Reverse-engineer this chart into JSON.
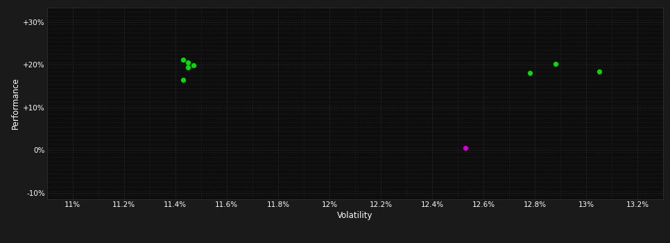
{
  "background_color": "#1a1a1a",
  "plot_bg_color": "#0d0d0d",
  "grid_color": "#2a2a2a",
  "text_color": "#ffffff",
  "xlabel": "Volatility",
  "ylabel": "Performance",
  "xlim": [
    0.109,
    0.133
  ],
  "ylim": [
    -0.115,
    0.335
  ],
  "xticks": [
    0.11,
    0.112,
    0.114,
    0.116,
    0.118,
    0.12,
    0.122,
    0.124,
    0.126,
    0.128,
    0.13,
    0.132
  ],
  "yticks": [
    -0.1,
    0.0,
    0.1,
    0.2,
    0.3
  ],
  "ytick_labels": [
    "-10%",
    "0%",
    "+10%",
    "+20%",
    "+30%"
  ],
  "xtick_labels": [
    "11%",
    "11.2%",
    "11.4%",
    "11.6%",
    "11.8%",
    "12%",
    "12.2%",
    "12.4%",
    "12.6%",
    "12.8%",
    "13%",
    "13.2%"
  ],
  "green_points": [
    [
      0.1143,
      0.212
    ],
    [
      0.1145,
      0.205
    ],
    [
      0.1147,
      0.199
    ],
    [
      0.1145,
      0.194
    ],
    [
      0.1143,
      0.165
    ],
    [
      0.1278,
      0.182
    ],
    [
      0.1288,
      0.202
    ],
    [
      0.1305,
      0.185
    ]
  ],
  "magenta_points": [
    [
      0.1253,
      0.005
    ]
  ],
  "green_color": "#00dd00",
  "magenta_color": "#cc00cc",
  "point_size": 18,
  "tick_fontsize": 7.5,
  "label_fontsize": 8.5
}
